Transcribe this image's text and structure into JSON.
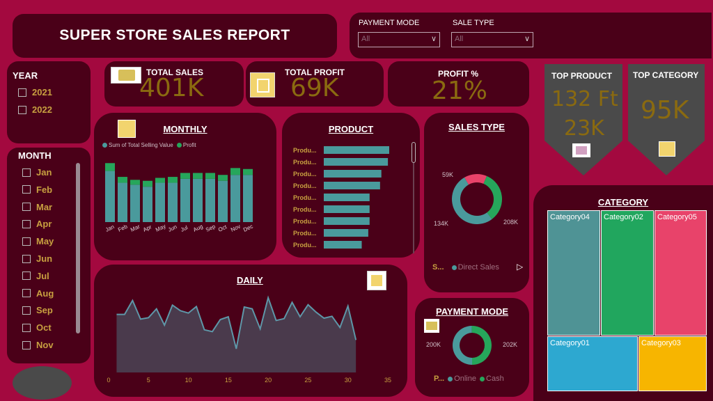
{
  "header": {
    "title": "SUPER STORE SALES REPORT"
  },
  "filters": {
    "payment_mode": {
      "label": "PAYMENT MODE",
      "value": "All"
    },
    "sale_type": {
      "label": "SALE TYPE",
      "value": "All"
    }
  },
  "kpis": {
    "total_sales": {
      "label": "TOTAL SALES",
      "value": "401K"
    },
    "total_profit": {
      "label": "TOTAL PROFIT",
      "value": "69K"
    },
    "profit_pct": {
      "label": "PROFIT %",
      "value": "21%"
    }
  },
  "top_product": {
    "label": "TOP PRODUCT",
    "name": "132 Ft",
    "value": "23K"
  },
  "top_category": {
    "label": "TOP CATEGORY",
    "value": "95K"
  },
  "year_filter": {
    "title": "YEAR",
    "items": [
      "2021",
      "2022"
    ]
  },
  "month_filter": {
    "title": "MONTH",
    "items": [
      "Jan",
      "Feb",
      "Mar",
      "Apr",
      "May",
      "Jun",
      "Jul",
      "Aug",
      "Sep",
      "Oct",
      "Nov"
    ]
  },
  "monthly": {
    "title": "MONTHLY",
    "legend": [
      "Sum of Total Selling Value",
      "Profit"
    ]
  },
  "product": {
    "title": "PRODUCT",
    "labels": [
      "Produ...",
      "Produ...",
      "Produ...",
      "Produ...",
      "Produ...",
      "Produ...",
      "Produ...",
      "Produ...",
      "Produ..."
    ]
  },
  "sales_type": {
    "title": "SALES TYPE",
    "legend_prefix": "S...",
    "legend_item": "Direct Sales",
    "labels": [
      "59K",
      "134K",
      "208K"
    ]
  },
  "daily": {
    "title": "DAILY"
  },
  "payment": {
    "title": "PAYMENT MODE",
    "legend_prefix": "P...",
    "legend_items": [
      "Online",
      "Cash"
    ],
    "labels": [
      "200K",
      "202K"
    ]
  },
  "category": {
    "title": "CATEGORY",
    "tiles": [
      "Category04",
      "Category02",
      "Category05",
      "Category01",
      "Category03"
    ]
  },
  "colors": {
    "bar": "#4a9a9c",
    "profit": "#26a65b",
    "pink": "#e8436a",
    "blue": "#2da8d0",
    "amber": "#f7b500",
    "line": "#5e97a8",
    "area": "#4a3a4c"
  },
  "chart_data": [
    {
      "type": "bar",
      "title": "MONTHLY",
      "categories": [
        "Jan",
        "Feb",
        "Mar",
        "Apr",
        "May",
        "Jun",
        "Jul",
        "Aug",
        "Sep",
        "Oct",
        "Nov",
        "Dec"
      ],
      "series": [
        {
          "name": "Sum of Total Selling Value",
          "values": [
            26,
            20,
            19,
            18,
            20,
            20,
            22,
            22,
            22,
            21,
            24,
            24
          ]
        },
        {
          "name": "Profit",
          "values": [
            4,
            3,
            2.5,
            3,
            2.5,
            3,
            3,
            3,
            3,
            3,
            3.5,
            3
          ]
        }
      ],
      "ylim": [
        0,
        34
      ]
    },
    {
      "type": "bar",
      "title": "PRODUCT",
      "categories": [
        "Produ...",
        "Produ...",
        "Produ...",
        "Produ...",
        "Produ...",
        "Produ...",
        "Produ...",
        "Produ...",
        "Produ..."
      ],
      "values": [
        100,
        98,
        88,
        86,
        70,
        70,
        70,
        68,
        58
      ],
      "xlim": [
        0,
        100
      ]
    },
    {
      "type": "pie",
      "title": "SALES TYPE",
      "labels": [
        "59K",
        "134K",
        "208K"
      ],
      "values": [
        59,
        134,
        208
      ]
    },
    {
      "type": "line",
      "title": "DAILY",
      "x": [
        1,
        2,
        3,
        4,
        5,
        6,
        7,
        8,
        9,
        10,
        11,
        12,
        13,
        14,
        15,
        16,
        17,
        18,
        19,
        20,
        21,
        22,
        23,
        24,
        25,
        26,
        27,
        28,
        29,
        30,
        31
      ],
      "values": [
        12.5,
        12.5,
        15.5,
        11.5,
        11.8,
        13.7,
        10.2,
        14.5,
        13.3,
        12.8,
        14.2,
        9.2,
        8.8,
        11.4,
        12,
        5.1,
        14.1,
        13.7,
        9.4,
        16.1,
        11.2,
        11.6,
        15.1,
        12,
        14.6,
        13,
        11.7,
        12.1,
        9.7,
        14.3,
        7
      ],
      "ylim": [
        0,
        18
      ],
      "xlim": [
        0,
        35
      ],
      "xticks": [
        0,
        5,
        10,
        15,
        20,
        25,
        30,
        35
      ]
    },
    {
      "type": "pie",
      "title": "PAYMENT MODE",
      "labels": [
        "200K",
        "202K"
      ],
      "series_names": [
        "Online",
        "Cash"
      ],
      "values": [
        200,
        202
      ]
    },
    {
      "type": "heatmap",
      "title": "CATEGORY",
      "categories": [
        "Category04",
        "Category02",
        "Category05",
        "Category01",
        "Category03"
      ]
    }
  ]
}
